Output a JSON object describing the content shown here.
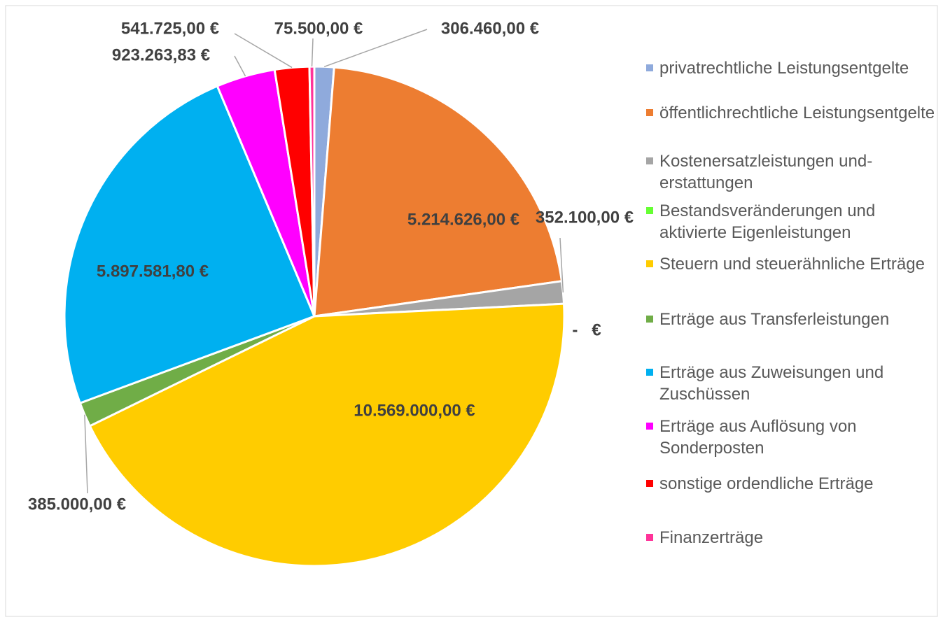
{
  "chart_data": {
    "type": "pie",
    "categories": [
      "privatrechtliche Leistungsentgelte",
      "öffentlichrechtliche Leistungsentgelte",
      "Kostenersatzleistungen und-erstattungen",
      "Bestandsveränderungen und aktivierte Eigenleistungen",
      "Steuern und steuerähnliche Erträge",
      "Erträge aus Transferleistungen",
      "Erträge aus Zuweisungen und Zuschüssen",
      "Erträge aus Auflösung von Sonderposten",
      "sonstige ordendliche Erträge",
      "Finanzerträge"
    ],
    "values": [
      306460,
      5214626,
      352100,
      0,
      10569000,
      385000,
      5897581.8,
      923263.83,
      541725,
      75500
    ],
    "value_labels": [
      "306.460,00 €",
      "5.214.626,00 €",
      "352.100,00 €",
      "-   €",
      "10.569.000,00 €",
      "385.000,00 €",
      "5.897.581,80 €",
      "923.263,83 €",
      "541.725,00 €",
      "75.500,00 €"
    ],
    "colors": [
      "#8faadc",
      "#ed7d31",
      "#a5a5a5",
      "#66ff33",
      "#ffcc00",
      "#70ad47",
      "#00b0f0",
      "#ff00ff",
      "#ff0000",
      "#ff3399"
    ],
    "legend": "right"
  }
}
